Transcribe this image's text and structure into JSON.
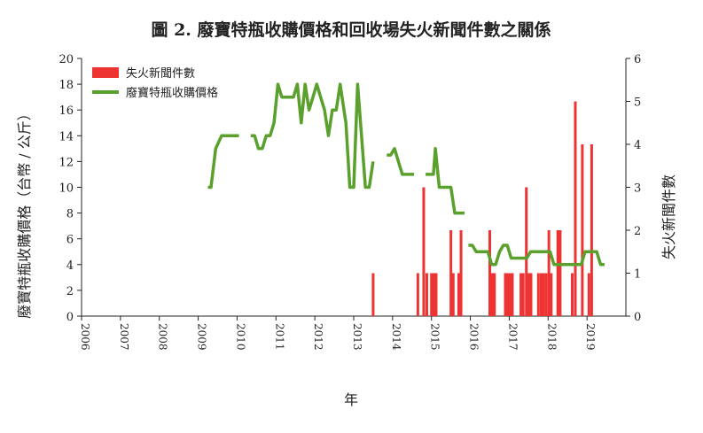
{
  "chart_data": {
    "type": "bar+line",
    "title": "圖 2. 廢寶特瓶收購價格和回收場失火新聞件數之關係",
    "xlabel": "年",
    "ylabel_left": "廢寶特瓶收購價格（台幣 / 公斤）",
    "ylabel_right": "失火新聞件數",
    "x_ticks": [
      "2006",
      "2007",
      "2008",
      "2009",
      "2010",
      "2011",
      "2012",
      "2013",
      "2014",
      "2015",
      "2016",
      "2017",
      "2018",
      "2019"
    ],
    "y_left": {
      "range": [
        0,
        20
      ],
      "ticks": [
        "0",
        "2",
        "4",
        "6",
        "8",
        "10",
        "12",
        "14",
        "16",
        "18",
        "20"
      ]
    },
    "y_right": {
      "range": [
        0,
        6
      ],
      "ticks": [
        "0",
        "1",
        "2",
        "3",
        "4",
        "5",
        "6"
      ]
    },
    "grid": false,
    "legend_position": "top-left",
    "series": [
      {
        "name": "失火新聞件數",
        "kind": "bar",
        "axis": "right",
        "color": "#ee3333",
        "points": [
          [
            2013.5,
            1
          ],
          [
            2014.65,
            1
          ],
          [
            2014.8,
            3
          ],
          [
            2014.88,
            1
          ],
          [
            2015.0,
            1
          ],
          [
            2015.06,
            1
          ],
          [
            2015.12,
            1
          ],
          [
            2015.5,
            2
          ],
          [
            2015.56,
            1
          ],
          [
            2015.7,
            1
          ],
          [
            2015.76,
            2
          ],
          [
            2016.5,
            2
          ],
          [
            2016.56,
            1
          ],
          [
            2016.62,
            1
          ],
          [
            2016.9,
            1
          ],
          [
            2016.96,
            1
          ],
          [
            2017.02,
            1
          ],
          [
            2017.08,
            1
          ],
          [
            2017.3,
            1
          ],
          [
            2017.36,
            1
          ],
          [
            2017.44,
            3
          ],
          [
            2017.5,
            1
          ],
          [
            2017.56,
            1
          ],
          [
            2017.75,
            1
          ],
          [
            2017.82,
            1
          ],
          [
            2017.88,
            1
          ],
          [
            2017.95,
            1
          ],
          [
            2018.02,
            2
          ],
          [
            2018.08,
            1
          ],
          [
            2018.25,
            2
          ],
          [
            2018.31,
            2
          ],
          [
            2018.62,
            1
          ],
          [
            2018.7,
            5
          ],
          [
            2018.88,
            4
          ],
          [
            2019.05,
            1
          ],
          [
            2019.12,
            4
          ]
        ]
      },
      {
        "name": "廢寶特瓶收購價格",
        "kind": "line",
        "axis": "left",
        "color": "#5aa02c",
        "segments": [
          [
            [
              2009.25,
              10
            ],
            [
              2009.33,
              10
            ],
            [
              2009.45,
              13
            ],
            [
              2009.6,
              14
            ],
            [
              2010.05,
              14
            ]
          ],
          [
            [
              2010.35,
              14
            ],
            [
              2010.45,
              14
            ],
            [
              2010.55,
              13
            ],
            [
              2010.65,
              13
            ],
            [
              2010.75,
              14
            ],
            [
              2010.85,
              14
            ],
            [
              2010.95,
              15
            ],
            [
              2011.05,
              18
            ],
            [
              2011.15,
              17
            ],
            [
              2011.45,
              17
            ],
            [
              2011.55,
              18
            ],
            [
              2011.65,
              15
            ],
            [
              2011.75,
              18
            ],
            [
              2011.85,
              16
            ],
            [
              2011.95,
              17
            ],
            [
              2012.05,
              18
            ],
            [
              2012.15,
              17
            ],
            [
              2012.25,
              16
            ],
            [
              2012.35,
              14
            ],
            [
              2012.45,
              16
            ],
            [
              2012.55,
              16
            ],
            [
              2012.65,
              18
            ],
            [
              2012.75,
              16
            ],
            [
              2012.8,
              15
            ],
            [
              2012.9,
              10
            ],
            [
              2013.0,
              10
            ],
            [
              2013.1,
              18
            ],
            [
              2013.2,
              14
            ],
            [
              2013.3,
              10
            ],
            [
              2013.4,
              10
            ],
            [
              2013.45,
              11
            ],
            [
              2013.5,
              12
            ]
          ],
          [
            [
              2013.85,
              12.5
            ],
            [
              2013.95,
              12.5
            ],
            [
              2014.05,
              13
            ],
            [
              2014.15,
              12
            ],
            [
              2014.25,
              11
            ],
            [
              2014.55,
              11
            ]
          ],
          [
            [
              2014.85,
              11
            ],
            [
              2015.05,
              11
            ],
            [
              2015.1,
              13
            ],
            [
              2015.2,
              10
            ],
            [
              2015.5,
              10
            ],
            [
              2015.6,
              8
            ],
            [
              2015.85,
              8
            ]
          ],
          [
            [
              2015.95,
              5.5
            ],
            [
              2016.05,
              5.5
            ],
            [
              2016.15,
              5
            ],
            [
              2016.45,
              5
            ],
            [
              2016.55,
              4
            ],
            [
              2016.65,
              4
            ],
            [
              2016.75,
              5
            ],
            [
              2016.85,
              5.5
            ],
            [
              2016.95,
              5.5
            ],
            [
              2017.05,
              4.5
            ],
            [
              2017.45,
              4.5
            ],
            [
              2017.55,
              5
            ],
            [
              2018.05,
              5
            ],
            [
              2018.15,
              4
            ],
            [
              2018.85,
              4
            ],
            [
              2018.95,
              5
            ],
            [
              2019.25,
              5
            ],
            [
              2019.35,
              4
            ],
            [
              2019.45,
              4
            ]
          ]
        ]
      }
    ]
  }
}
